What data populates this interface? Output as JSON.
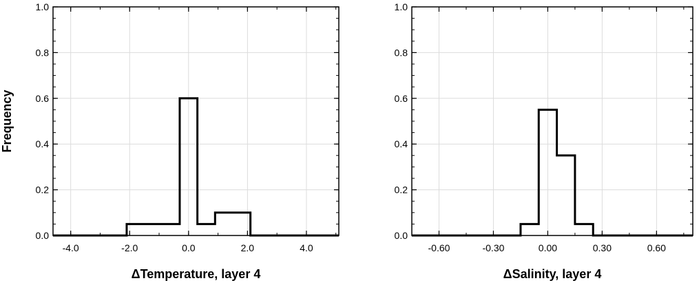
{
  "chart_data": [
    {
      "type": "step",
      "title": "",
      "xlabel": "ΔTemperature, layer 4",
      "ylabel": "Frequency",
      "xlim": [
        -4.6,
        5.1
      ],
      "ylim": [
        0,
        1.0
      ],
      "grid": true,
      "xticks": [
        -4.0,
        -2.0,
        0.0,
        2.0,
        4.0
      ],
      "xtick_labels": [
        "-4.0",
        "-2.0",
        "0.0",
        "2.0",
        "4.0"
      ],
      "yticks": [
        0.0,
        0.2,
        0.4,
        0.6,
        0.8,
        1.0
      ],
      "ytick_labels": [
        "0.0",
        "0.2",
        "0.4",
        "0.6",
        "0.8",
        "1.0"
      ],
      "series": [
        {
          "x": [
            -4.6,
            -2.1,
            -2.1,
            -0.3,
            -0.3,
            0.3,
            0.3,
            0.9,
            0.9,
            2.1,
            2.1,
            5.1
          ],
          "y": [
            0.0,
            0.0,
            0.05,
            0.05,
            0.6,
            0.6,
            0.05,
            0.05,
            0.1,
            0.1,
            0.0,
            0.0
          ]
        }
      ]
    },
    {
      "type": "step",
      "title": "",
      "xlabel": "ΔSalinity, layer 4",
      "ylabel": "",
      "xlim": [
        -0.75,
        0.8
      ],
      "ylim": [
        0,
        1.0
      ],
      "grid": true,
      "xticks": [
        -0.6,
        -0.3,
        0.0,
        0.3,
        0.6
      ],
      "xtick_labels": [
        "-0.60",
        "-0.30",
        "0.00",
        "0.30",
        "0.60"
      ],
      "yticks": [
        0.0,
        0.2,
        0.4,
        0.6,
        0.8,
        1.0
      ],
      "ytick_labels": [
        "0.0",
        "0.2",
        "0.4",
        "0.6",
        "0.8",
        "1.0"
      ],
      "series": [
        {
          "x": [
            -0.75,
            -0.15,
            -0.15,
            -0.05,
            -0.05,
            0.05,
            0.05,
            0.15,
            0.15,
            0.25,
            0.25,
            0.8
          ],
          "y": [
            0.0,
            0.0,
            0.05,
            0.05,
            0.55,
            0.55,
            0.35,
            0.35,
            0.05,
            0.05,
            0.0,
            0.0
          ]
        }
      ]
    }
  ]
}
